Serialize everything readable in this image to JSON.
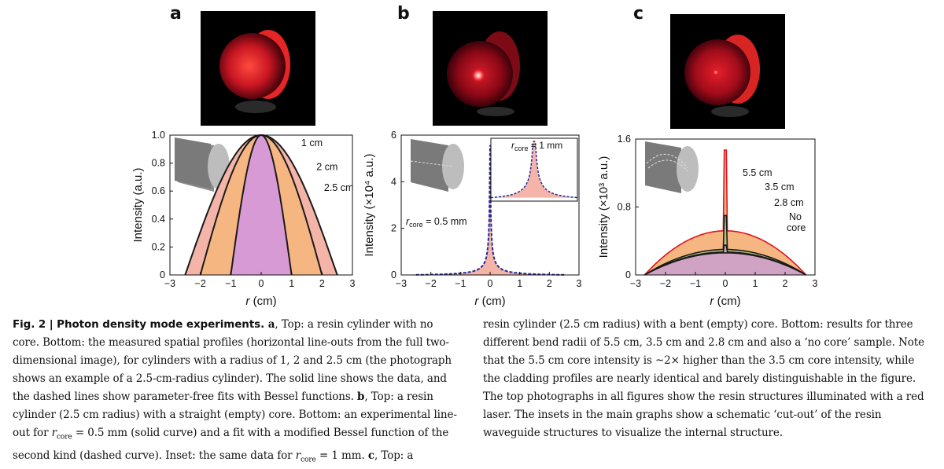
{
  "panels": [
    {
      "letter": "a"
    },
    {
      "letter": "b"
    },
    {
      "letter": "c"
    }
  ],
  "colors": {
    "profile_outer": "#f4b4a8",
    "profile_mid": "#f6b682",
    "profile_core": "#d79ad5",
    "data_line": "#1a1a1a",
    "fit_b": "#1f2a9a",
    "c_green": "#b7c27c",
    "c_orange": "#f6b682",
    "laser_red": "#e0141e"
  },
  "chart_data": [
    {
      "type": "area",
      "xlabel_var": "r",
      "xlabel_unit": " (cm)",
      "ylabel": "Intensity (a.u.)",
      "xlim": [
        -3,
        3
      ],
      "ylim": [
        0,
        1.0
      ],
      "x_ticks": [
        "−3",
        "−2",
        "−1",
        "0",
        "1",
        "2",
        "3"
      ],
      "y_ticks": [
        "0",
        "0.2",
        "0.4",
        "0.6",
        "0.8",
        "1.0"
      ],
      "series": [
        {
          "name": "2.5 cm",
          "radius": 2.5,
          "peak": 1.0
        },
        {
          "name": "2 cm",
          "radius": 2.0,
          "peak": 1.0
        },
        {
          "name": "1 cm",
          "radius": 1.0,
          "peak": 1.0
        }
      ]
    },
    {
      "type": "area",
      "xlabel_var": "r",
      "xlabel_unit": " (cm)",
      "ylabel": "Intensity (×10⁴ a.u.)",
      "xlim": [
        -3,
        3
      ],
      "ylim": [
        0,
        7
      ],
      "x_ticks": [
        "−3",
        "−2",
        "−1",
        "0",
        "1",
        "2",
        "3"
      ],
      "y_ticks": [
        "0",
        "2",
        "4",
        "6"
      ],
      "annotation": {
        "r": "r",
        "sub": "core",
        "rest": " = 0.5 mm"
      },
      "inset": {
        "r": "r",
        "sub": "core",
        "rest": " = 1 mm"
      },
      "peak": 6.5
    },
    {
      "type": "area",
      "xlabel_var": "r",
      "xlabel_unit": " (cm)",
      "ylabel": "Intensity (×10³ a.u.)",
      "xlim": [
        -3,
        3
      ],
      "ylim": [
        0,
        1.6
      ],
      "x_ticks": [
        "−3",
        "−2",
        "−1",
        "0",
        "1",
        "2",
        "3"
      ],
      "y_ticks": [
        "0",
        "0.8",
        "1.6"
      ],
      "series": [
        {
          "name": "5.5 cm",
          "base": 0.52,
          "spike": 1.47
        },
        {
          "name": "3.5 cm",
          "base": 0.3,
          "spike": 0.7
        },
        {
          "name": "2.8 cm",
          "base": 0.27,
          "spike": 0.35
        },
        {
          "name": "No core",
          "base": 0.26,
          "spike": 0.26
        }
      ],
      "label_lines": [
        "No",
        "core"
      ]
    }
  ],
  "caption": {
    "fig_label": "Fig. 2 | Photon density mode experiments.",
    "left": [
      {
        "b": " a",
        "t": ", Top: a resin cylinder with no core. Bottom: the measured spatial profiles (horizontal line-outs from the full two-dimensional image), for cylinders with a radius of 1, 2 and 2.5 cm (the photograph shows an example of a 2.5-cm-radius cylinder). The solid line shows the data, and the dashed lines show parameter-free fits with Bessel functions. "
      },
      {
        "b": "b",
        "t": ", Top: a resin cylinder (2.5 cm radius) with a straight (empty) core. Bottom: an experimental line-out for "
      },
      {
        "t2": " = 0.5 mm (solid curve) and a fit with a modified Bessel function of the second kind (dashed curve). Inset: the same data for "
      },
      {
        "t3": " = 1 mm. "
      },
      {
        "b": "c",
        "t": ", Top: a"
      }
    ],
    "right": "resin cylinder (2.5 cm radius) with a bent (empty) core. Bottom: results for three different bend radii of 5.5 cm, 3.5 cm and 2.8 cm and also a ‘no core’ sample. Note that the 5.5 cm core intensity is ~2× higher than the 3.5 cm core intensity, while the cladding profiles are nearly identical and barely distinguishable in the figure. The top photographs in all figures show the resin structures illuminated with a red laser. The insets in the main graphs show a schematic ‘cut-out’ of the resin waveguide structures to visualize the internal structure.",
    "rcore_r": "r",
    "rcore_sub": "core"
  }
}
